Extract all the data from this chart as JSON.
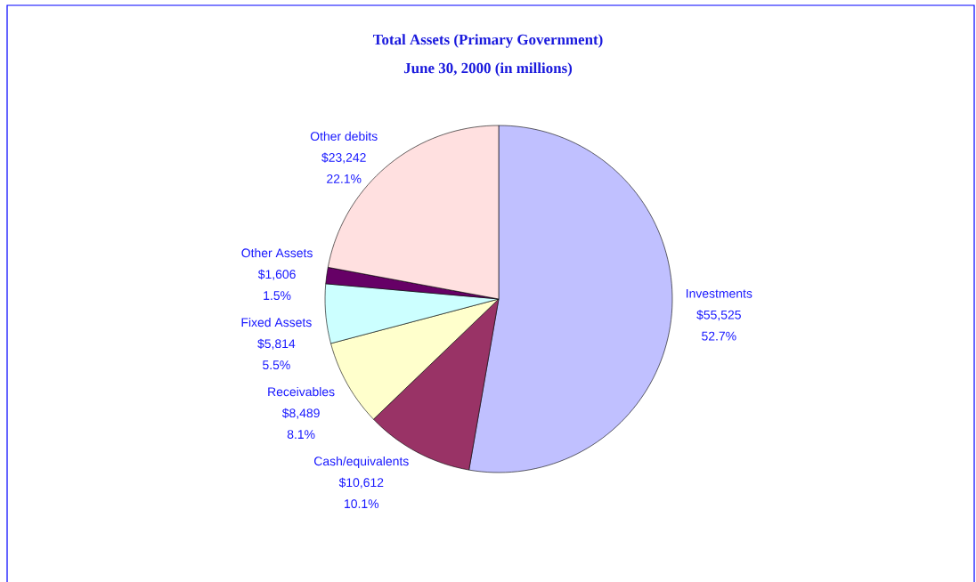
{
  "chart_data": {
    "type": "pie",
    "title": "Total Assets (Primary Government)",
    "subtitle": "June 30, 2000 (in millions)",
    "categories": [
      "Investments",
      "Cash/equivalents",
      "Receivables",
      "Fixed Assets",
      "Other Assets",
      "Other debits"
    ],
    "values": [
      55525,
      10612,
      8489,
      5814,
      1606,
      23242
    ],
    "colors": [
      "#c0c0ff",
      "#993366",
      "#ffffcc",
      "#ccffff",
      "#660066",
      "#ffe0e0"
    ],
    "value_labels": [
      "$55,525",
      "$10,612",
      "$8,489",
      "$5,814",
      "$1,606",
      "$23,242"
    ],
    "annotations": [
      "52.7%",
      "10.1%",
      "8.1%",
      "5.5%",
      "1.5%",
      "22.1%"
    ]
  }
}
